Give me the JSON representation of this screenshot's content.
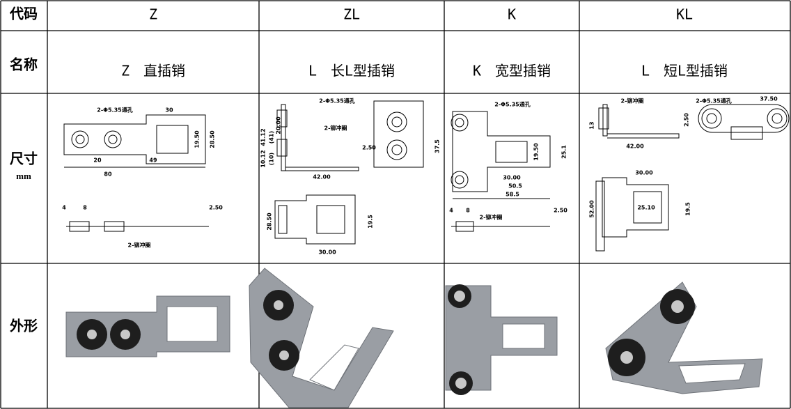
{
  "table": {
    "code_row": {
      "label": "代码",
      "cells": [
        "Z",
        "ZL",
        "K",
        "KL"
      ]
    },
    "name_row": {
      "label": "名称",
      "cells": [
        "Z　直插销",
        "L　长L型插销",
        "K　宽型插销",
        "L　短L型插销"
      ]
    },
    "dimension_row": {
      "label": "尺寸",
      "unit": "mm",
      "drawings": [
        {
          "labels": [
            "2-Φ5.35通孔",
            "30",
            "19.50",
            "28.50",
            "20",
            "49",
            "80",
            "4",
            "8",
            "2.50",
            "2-铆冲圈"
          ]
        },
        {
          "labels": [
            "2-Φ5.35通孔",
            "41.12",
            "(41)",
            "20.00",
            "10.12",
            "(10)",
            "2-铆冲圈",
            "2.50",
            "42.00",
            "28.50",
            "19.5",
            "30.00"
          ]
        },
        {
          "labels": [
            "2-Φ5.35通孔",
            "37.5",
            "19.50",
            "25.1",
            "30.00",
            "50.5",
            "58.5",
            "4",
            "8",
            "2-铆冲圈",
            "2.50"
          ]
        },
        {
          "labels": [
            "2-铆冲圈",
            "2-Φ5.35通孔",
            "37.50",
            "13",
            "2.50",
            "42.00",
            "30.00",
            "52.00",
            "25.10",
            "19.5"
          ]
        }
      ]
    },
    "appearance_row": {
      "label": "外形"
    }
  }
}
